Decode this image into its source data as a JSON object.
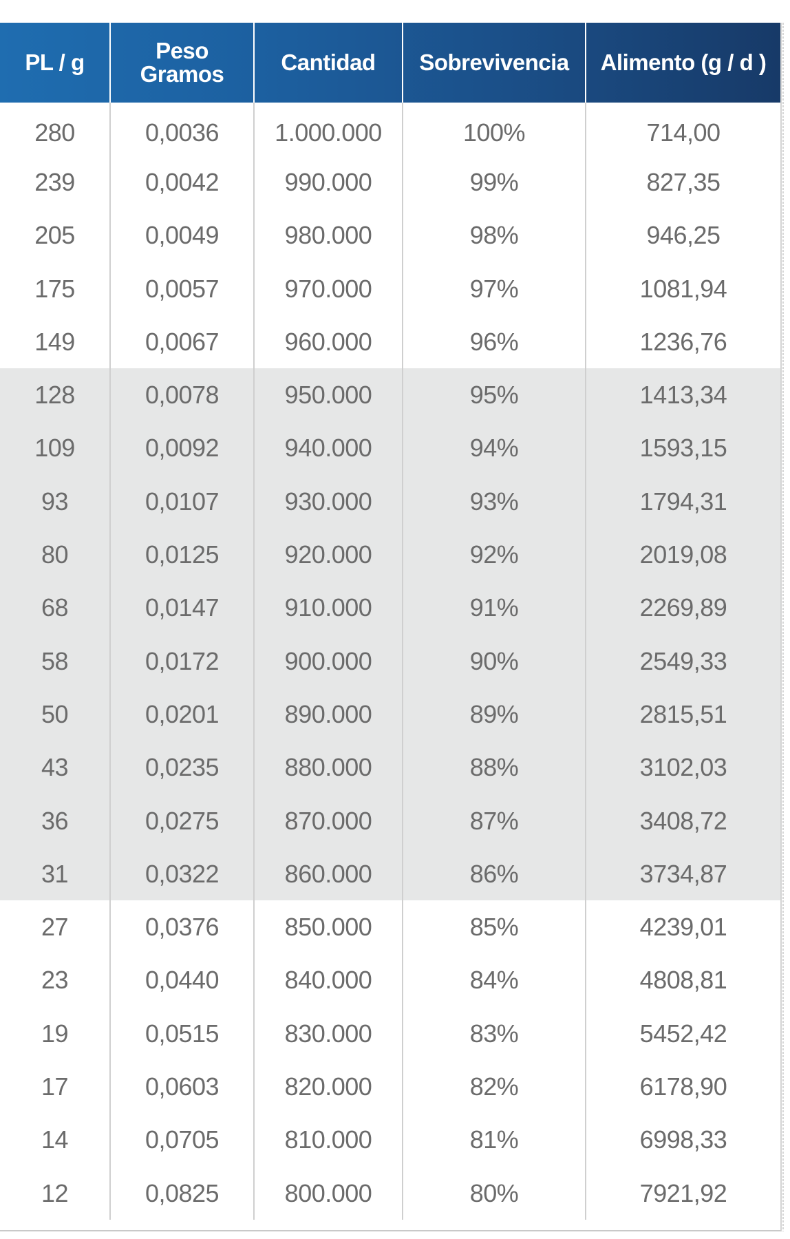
{
  "table": {
    "headers": {
      "pl_g": "PL / g",
      "peso_line1": "Peso",
      "peso_line2": "Gramos",
      "cantidad": "Cantidad",
      "sobrevivencia": "Sobrevivencia",
      "alimento": "Alimento (g / d )"
    },
    "shaded_row_range": [
      6,
      15
    ],
    "header_gradient_colors": [
      "#1f6db0",
      "#173a68"
    ],
    "shade_color": "#e6e7e7",
    "rows": [
      [
        "280",
        "0,0036",
        "1.000.000",
        "100%",
        "714,00"
      ],
      [
        "239",
        "0,0042",
        "990.000",
        "99%",
        "827,35"
      ],
      [
        "205",
        "0,0049",
        "980.000",
        "98%",
        "946,25"
      ],
      [
        "175",
        "0,0057",
        "970.000",
        "97%",
        "1081,94"
      ],
      [
        "149",
        "0,0067",
        "960.000",
        "96%",
        "1236,76"
      ],
      [
        "128",
        "0,0078",
        "950.000",
        "95%",
        "1413,34"
      ],
      [
        "109",
        "0,0092",
        "940.000",
        "94%",
        "1593,15"
      ],
      [
        "93",
        "0,0107",
        "930.000",
        "93%",
        "1794,31"
      ],
      [
        "80",
        "0,0125",
        "920.000",
        "92%",
        "2019,08"
      ],
      [
        "68",
        "0,0147",
        "910.000",
        "91%",
        "2269,89"
      ],
      [
        "58",
        "0,0172",
        "900.000",
        "90%",
        "2549,33"
      ],
      [
        "50",
        "0,0201",
        "890.000",
        "89%",
        "2815,51"
      ],
      [
        "43",
        "0,0235",
        "880.000",
        "88%",
        "3102,03"
      ],
      [
        "36",
        "0,0275",
        "870.000",
        "87%",
        "3408,72"
      ],
      [
        "31",
        "0,0322",
        "860.000",
        "86%",
        "3734,87"
      ],
      [
        "27",
        "0,0376",
        "850.000",
        "85%",
        "4239,01"
      ],
      [
        "23",
        "0,0440",
        "840.000",
        "84%",
        "4808,81"
      ],
      [
        "19",
        "0,0515",
        "830.000",
        "83%",
        "5452,42"
      ],
      [
        "17",
        "0,0603",
        "820.000",
        "82%",
        "6178,90"
      ],
      [
        "14",
        "0,0705",
        "810.000",
        "81%",
        "6998,33"
      ],
      [
        "12",
        "0,0825",
        "800.000",
        "80%",
        "7921,92"
      ]
    ]
  }
}
